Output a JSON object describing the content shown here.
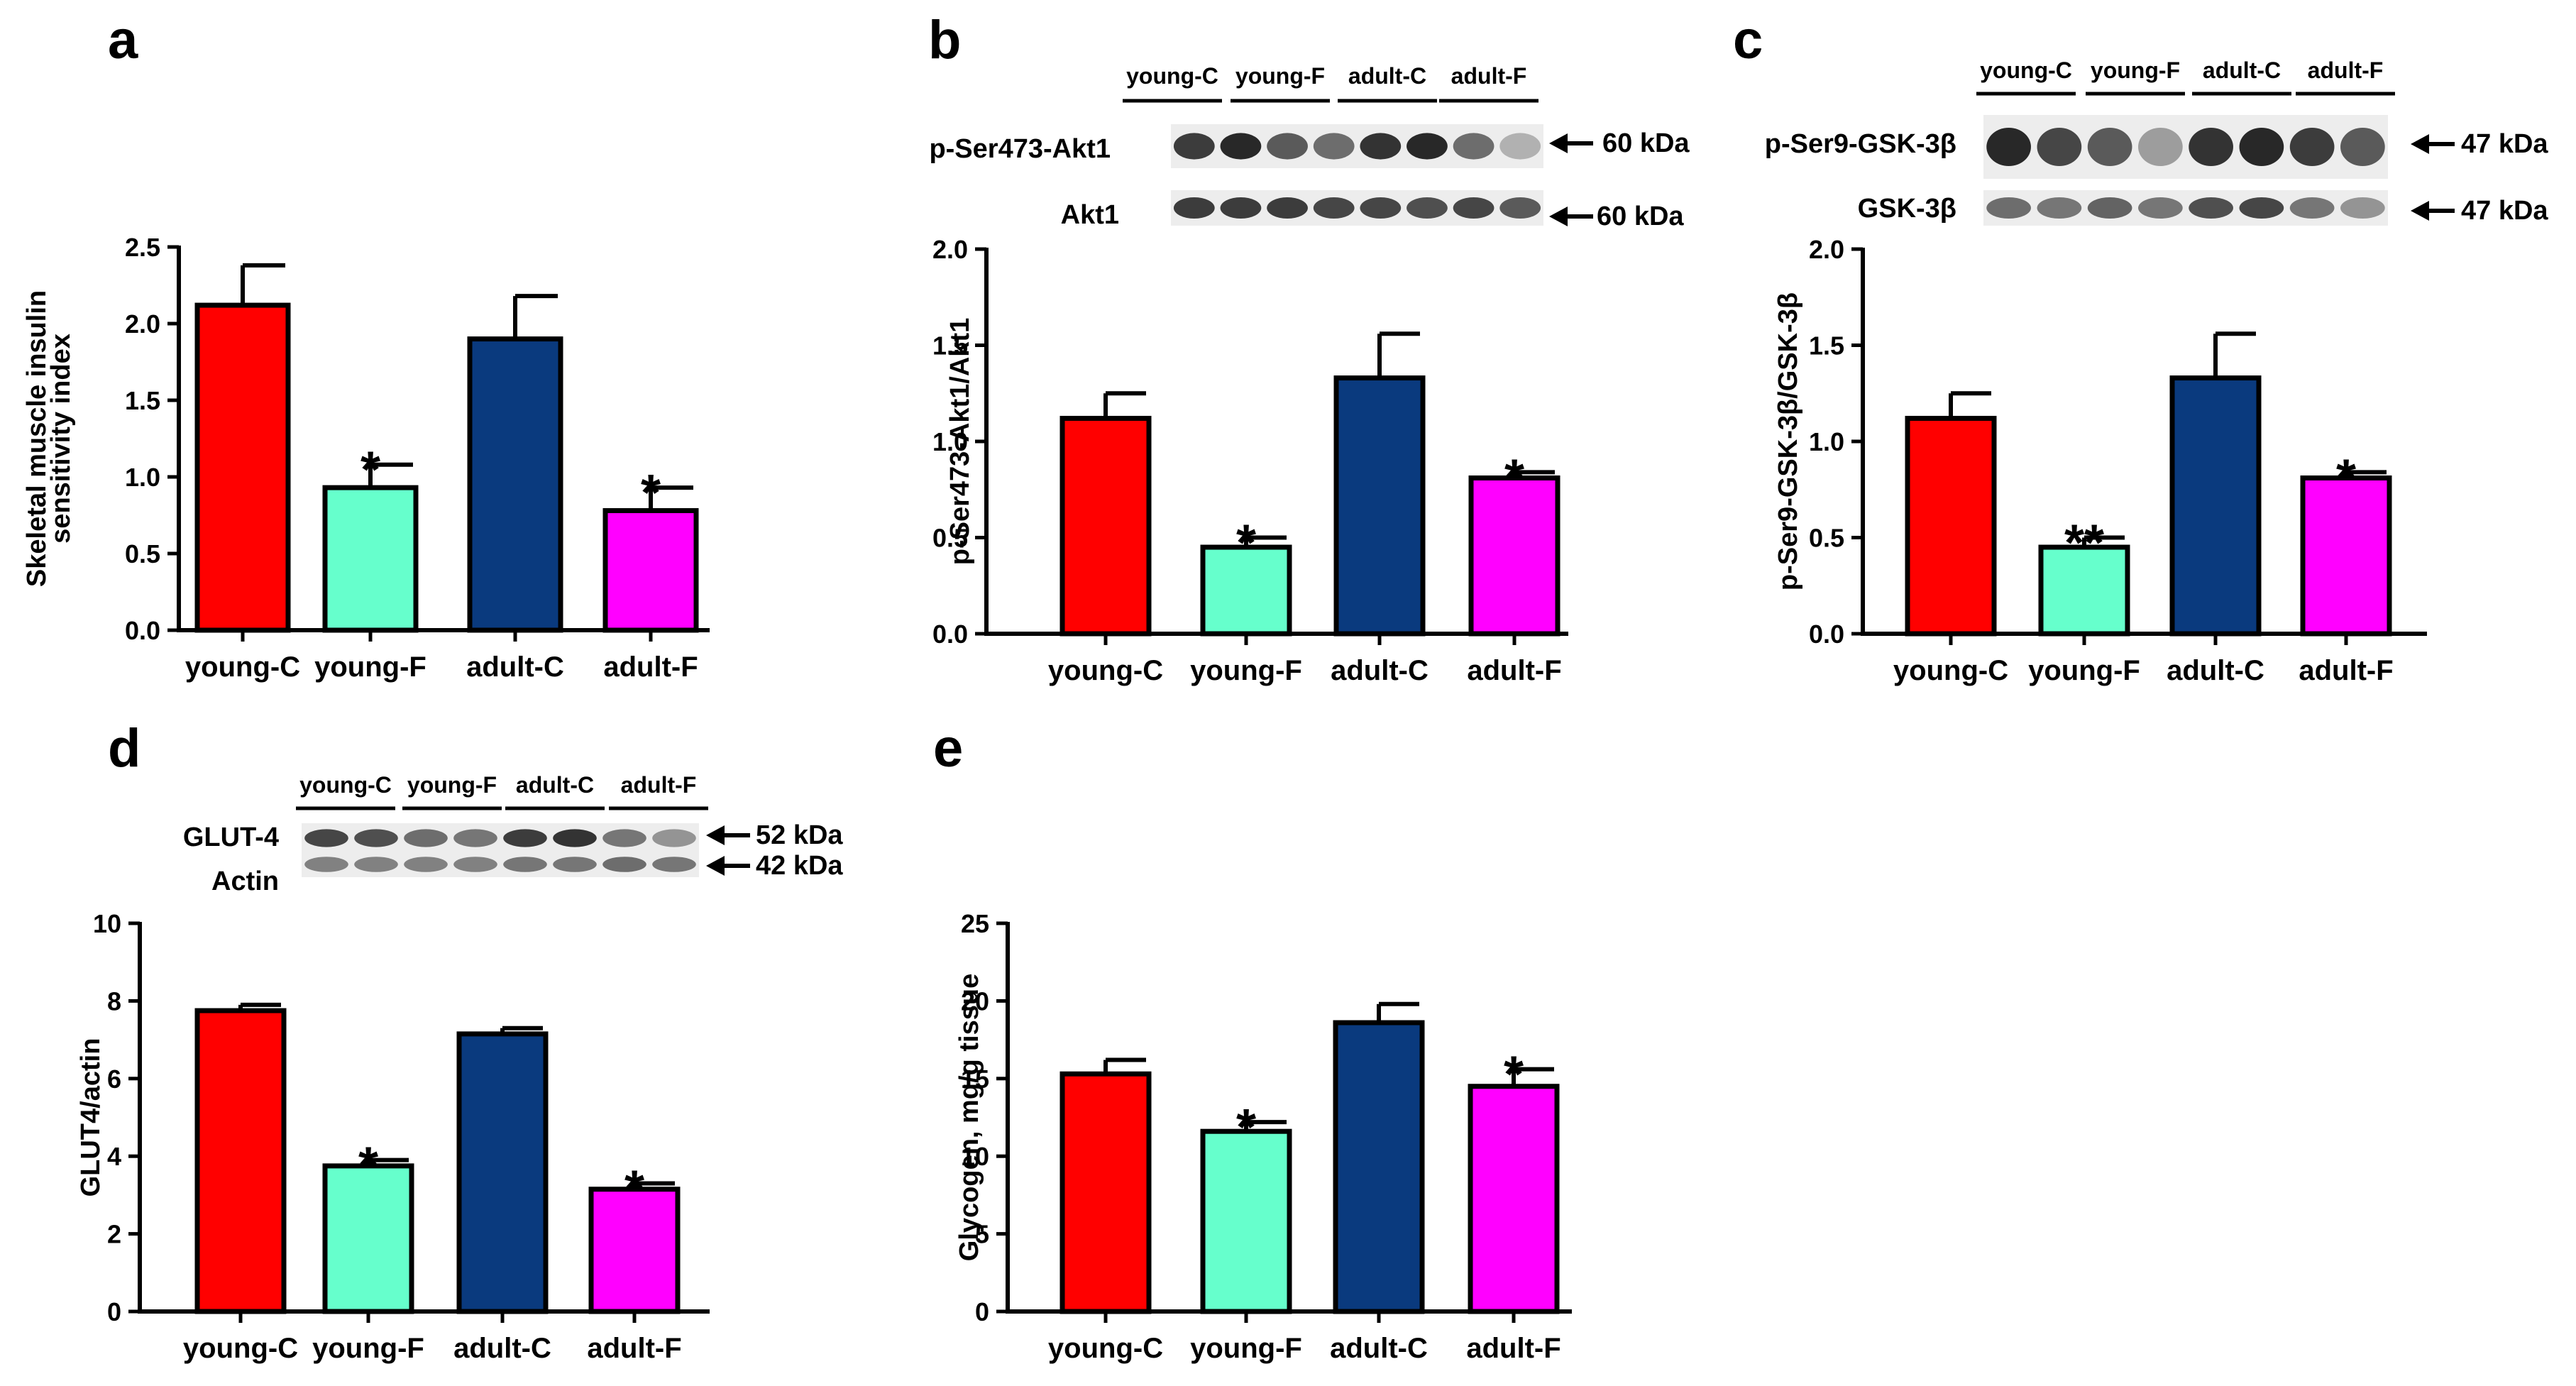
{
  "colors": {
    "young_c": "#ff0000",
    "young_f": "#66ffcc",
    "adult_c": "#0a3a7e",
    "adult_f": "#ff00ff",
    "axis": "#000000"
  },
  "chart_data": [
    {
      "panel": "a",
      "type": "bar",
      "categories": [
        "young-C",
        "young-F",
        "adult-C",
        "adult-F"
      ],
      "values": [
        2.12,
        0.93,
        1.9,
        0.78
      ],
      "errors": [
        0.26,
        0.15,
        0.28,
        0.15
      ],
      "significance": [
        "",
        "*",
        "",
        "*"
      ],
      "ylabel": [
        "Skeletal muscle insulin",
        "sensitivity index"
      ],
      "ylim": [
        0,
        2.5
      ],
      "yticks": [
        "0.0",
        "0.5",
        "1.0",
        "1.5",
        "2.0",
        "2.5"
      ],
      "grid": false
    },
    {
      "panel": "b",
      "type": "bar",
      "categories": [
        "young-C",
        "young-F",
        "adult-C",
        "adult-F"
      ],
      "values": [
        1.12,
        0.45,
        1.33,
        0.81
      ],
      "errors": [
        0.13,
        0.05,
        0.23,
        0.03
      ],
      "significance": [
        "",
        "*",
        "",
        "*"
      ],
      "ylabel": [
        "p-Ser473-Akt1/Akt1"
      ],
      "ylim": [
        0,
        2.0
      ],
      "yticks": [
        "0.0",
        "0.5",
        "1.0",
        "1.5",
        "2.0"
      ],
      "grid": false
    },
    {
      "panel": "c",
      "type": "bar",
      "categories": [
        "young-C",
        "young-F",
        "adult-C",
        "adult-F"
      ],
      "values": [
        1.12,
        0.45,
        1.33,
        0.81
      ],
      "errors": [
        0.13,
        0.05,
        0.23,
        0.03
      ],
      "significance": [
        "",
        "**",
        "",
        "*"
      ],
      "ylabel": [
        "p-Ser9-GSK-3β/GSK-3β"
      ],
      "ylim": [
        0,
        2.0
      ],
      "yticks": [
        "0.0",
        "0.5",
        "1.0",
        "1.5",
        "2.0"
      ],
      "grid": false
    },
    {
      "panel": "d",
      "type": "bar",
      "categories": [
        "young-C",
        "young-F",
        "adult-C",
        "adult-F"
      ],
      "values": [
        7.75,
        3.75,
        7.15,
        3.15
      ],
      "errors": [
        0.15,
        0.15,
        0.15,
        0.15
      ],
      "significance": [
        "",
        "*",
        "",
        "*"
      ],
      "ylabel": [
        "GLUT4/actin"
      ],
      "ylim": [
        0,
        10
      ],
      "yticks": [
        "0",
        "2",
        "4",
        "6",
        "8",
        "10"
      ],
      "grid": false
    },
    {
      "panel": "e",
      "type": "bar",
      "categories": [
        "young-C",
        "young-F",
        "adult-C",
        "adult-F"
      ],
      "values": [
        15.3,
        11.6,
        18.6,
        14.5
      ],
      "errors": [
        0.9,
        0.6,
        1.2,
        1.1
      ],
      "significance": [
        "",
        "*",
        "",
        "*"
      ],
      "ylabel": [
        "Glycogen, mg/g tissue"
      ],
      "ylim": [
        0,
        25
      ],
      "yticks": [
        "0",
        "5",
        "10",
        "15",
        "20",
        "25"
      ],
      "grid": false
    }
  ],
  "blots": [
    {
      "panel": "b",
      "groups": [
        "young-C",
        "young-F",
        "adult-C",
        "adult-F"
      ],
      "rows": [
        {
          "label": "p-Ser473-Akt1",
          "marker": "60 kDa",
          "intensity": [
            0.85,
            0.95,
            0.7,
            0.6,
            0.9,
            0.95,
            0.6,
            0.25
          ]
        },
        {
          "label": "Akt1",
          "marker": "60 kDa",
          "intensity": [
            0.85,
            0.85,
            0.85,
            0.8,
            0.8,
            0.75,
            0.8,
            0.7
          ]
        }
      ]
    },
    {
      "panel": "c",
      "groups": [
        "young-C",
        "young-F",
        "adult-C",
        "adult-F"
      ],
      "rows": [
        {
          "label": "p-Ser9-GSK-3β",
          "marker": "47 kDa",
          "intensity": [
            0.95,
            0.8,
            0.7,
            0.35,
            0.9,
            0.95,
            0.85,
            0.7
          ]
        },
        {
          "label": "GSK-3β",
          "marker": "47 kDa",
          "intensity": [
            0.6,
            0.55,
            0.65,
            0.55,
            0.75,
            0.8,
            0.55,
            0.4
          ]
        }
      ]
    },
    {
      "panel": "d",
      "groups": [
        "young-C",
        "young-F",
        "adult-C",
        "adult-F"
      ],
      "rows": [
        {
          "label": "GLUT-4",
          "marker": "52 kDa",
          "intensity": [
            0.8,
            0.75,
            0.6,
            0.55,
            0.85,
            0.9,
            0.55,
            0.4
          ]
        },
        {
          "label": "Actin",
          "marker": "42 kDa",
          "intensity": [
            0.5,
            0.5,
            0.5,
            0.5,
            0.55,
            0.55,
            0.6,
            0.55
          ]
        }
      ]
    }
  ]
}
